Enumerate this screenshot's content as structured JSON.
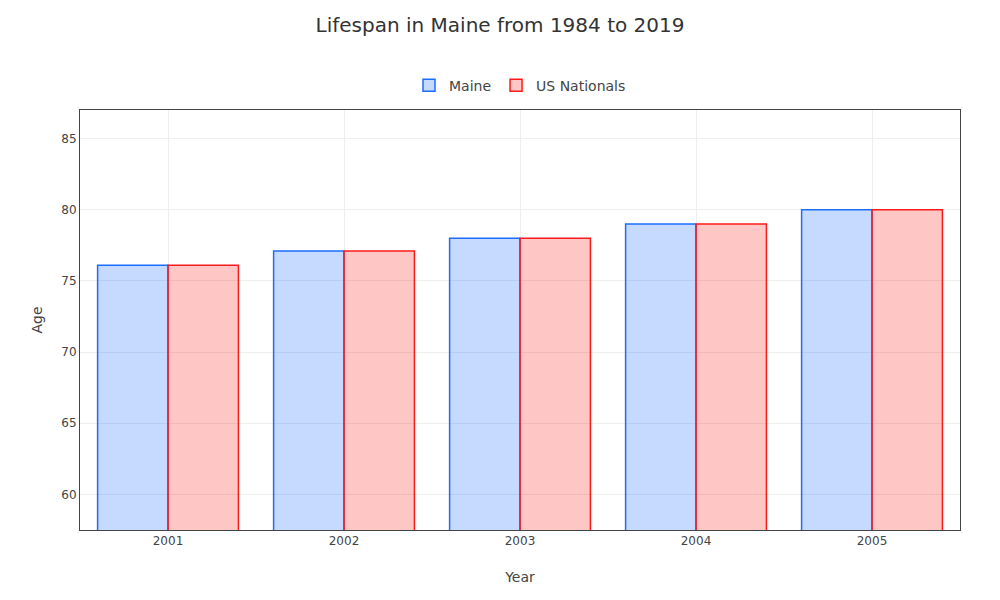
{
  "chart_data": {
    "type": "bar",
    "title": "Lifespan in Maine from 1984 to 2019",
    "xlabel": "Year",
    "ylabel": "Age",
    "categories": [
      "2001",
      "2002",
      "2003",
      "2004",
      "2005"
    ],
    "series": [
      {
        "name": "Maine",
        "color": "#1a6dff",
        "values": [
          76.1,
          77.1,
          78.0,
          79.0,
          80.0
        ]
      },
      {
        "name": "US Nationals",
        "color": "#ff1a1a",
        "values": [
          76.1,
          77.1,
          78.0,
          79.0,
          80.0
        ]
      }
    ],
    "ylim": [
      57.5,
      87
    ],
    "yticks": [
      60,
      65,
      70,
      75,
      80,
      85
    ],
    "grid": true,
    "legend": "upper center"
  }
}
